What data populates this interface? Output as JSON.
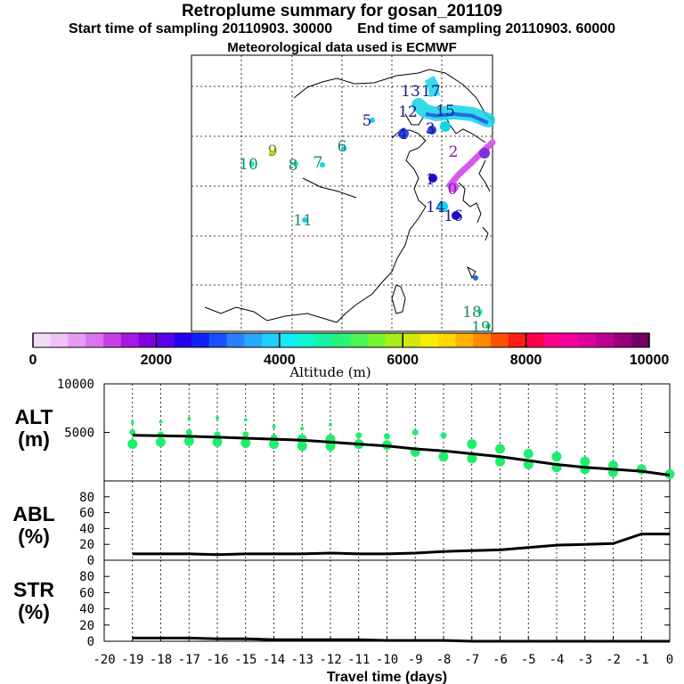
{
  "header": {
    "title": "Retroplume summary for gosan_201109",
    "start_label": "Start time of sampling 20110903. 30000",
    "end_label": "End time of sampling 20110903. 60000",
    "met_label": "Meteorological data used is ECMWF"
  },
  "colorbar": {
    "tick_labels": [
      "0",
      "2000",
      "4000",
      "6000",
      "8000",
      "10000"
    ],
    "xlabel": "Altitude (m)",
    "colors": [
      "#f3dcf7",
      "#efc3f6",
      "#e79cf2",
      "#dc73ee",
      "#c940e8",
      "#a418e0",
      "#8000e0",
      "#5c00ec",
      "#2400f0",
      "#1020f8",
      "#1850ff",
      "#2a80ff",
      "#28a8ff",
      "#1fcfff",
      "#12ecf4",
      "#10f5d0",
      "#18f4a4",
      "#28f47c",
      "#48f458",
      "#78f430",
      "#a8ec18",
      "#d4e808",
      "#f6f000",
      "#ffd800",
      "#ffb000",
      "#ff8a00",
      "#ff5200",
      "#ff1c10",
      "#ff0048",
      "#ff0088",
      "#f2009e",
      "#dc009e",
      "#bc0090",
      "#980078",
      "#700060"
    ]
  },
  "map": {
    "labels": [
      {
        "text": "5",
        "color": "#1a1a8a"
      },
      {
        "text": "6",
        "color": "#1a8a60"
      },
      {
        "text": "7",
        "color": "#1a8a60"
      },
      {
        "text": "8",
        "color": "#1a8a60"
      },
      {
        "text": "9",
        "color": "#6f8a00"
      },
      {
        "text": "10",
        "color": "#1a8a60"
      },
      {
        "text": "11",
        "color": "#1a8a60"
      },
      {
        "text": "4",
        "color": "#1a1a8a"
      },
      {
        "text": "3",
        "color": "#1a1a8a"
      },
      {
        "text": "2",
        "color": "#8a1aaa"
      },
      {
        "text": "1",
        "color": "#1a1a8a"
      },
      {
        "text": "0",
        "color": "#8a1aaa"
      },
      {
        "text": "16",
        "color": "#1a1a8a"
      },
      {
        "text": "14",
        "color": "#1a1a8a"
      },
      {
        "text": "15",
        "color": "#1a1a8a"
      },
      {
        "text": "12",
        "color": "#1a1a8a"
      },
      {
        "text": "13",
        "color": "#1a1a8a"
      },
      {
        "text": "17",
        "color": "#1a1a8a"
      },
      {
        "text": "18",
        "color": "#1a8a60"
      },
      {
        "text": "19",
        "color": "#1a8a60"
      }
    ]
  },
  "chart_data": [
    {
      "type": "scatter",
      "panel": "ALT",
      "ylabel": "ALT\n(m)",
      "ylabel_lines": [
        "ALT",
        "(m)"
      ],
      "ylim": [
        0,
        10000
      ],
      "yticks": [
        "10000",
        "5000"
      ],
      "xlim": [
        -20,
        0
      ],
      "series": [
        {
          "name": "median altitude",
          "x": [
            -19,
            -18,
            -17,
            -16,
            -15,
            -14,
            -13,
            -12,
            -11,
            -10,
            -9,
            -8,
            -7,
            -6,
            -5,
            -4,
            -3,
            -2,
            -1,
            0
          ],
          "values": [
            4700,
            4650,
            4600,
            4500,
            4400,
            4300,
            4200,
            4000,
            3800,
            3600,
            3300,
            3100,
            2800,
            2500,
            2100,
            1700,
            1400,
            1200,
            1000,
            600
          ]
        },
        {
          "name": "plume spread",
          "x": [
            -19,
            -19,
            -19,
            -18,
            -18,
            -18,
            -17,
            -17,
            -17,
            -16,
            -16,
            -16,
            -15,
            -15,
            -15,
            -14,
            -14,
            -14,
            -13,
            -13,
            -13,
            -12,
            -12,
            -12,
            -11,
            -11,
            -10,
            -10,
            -9,
            -9,
            -8,
            -8,
            -7,
            -7,
            -6,
            -6,
            -5,
            -5,
            -4,
            -4,
            -3,
            -3,
            -2,
            -2,
            -1,
            0
          ],
          "values": [
            6000,
            5000,
            3800,
            6100,
            4800,
            4000,
            6400,
            5000,
            4100,
            6500,
            4800,
            4000,
            6300,
            4800,
            3900,
            5600,
            4500,
            3800,
            5400,
            4300,
            3600,
            5800,
            4300,
            3600,
            4700,
            3800,
            4600,
            3700,
            5000,
            3000,
            4700,
            2500,
            3800,
            2300,
            3300,
            2000,
            2800,
            1700,
            2500,
            1400,
            2000,
            1200,
            1600,
            900,
            1200,
            700
          ]
        }
      ]
    },
    {
      "type": "line",
      "panel": "ABL",
      "ylabel": "ABL\n(%)",
      "ylabel_lines": [
        "ABL",
        "(%)"
      ],
      "ylim": [
        0,
        100
      ],
      "yticks": [
        "80",
        "60",
        "40",
        "20",
        "0"
      ],
      "x": [
        -19,
        -18,
        -17,
        -16,
        -15,
        -14,
        -13,
        -12,
        -11,
        -10,
        -9,
        -8,
        -7,
        -6,
        -5,
        -4,
        -3,
        -2,
        -1,
        0
      ],
      "series": [
        {
          "name": "ABL",
          "values": [
            8,
            8,
            8,
            7,
            8,
            8,
            8,
            9,
            8,
            8,
            9,
            11,
            12,
            13,
            16,
            19,
            20,
            21,
            33,
            33
          ]
        }
      ]
    },
    {
      "type": "line",
      "panel": "STR",
      "ylabel": "STR\n(%)",
      "ylabel_lines": [
        "STR",
        "(%)"
      ],
      "ylim": [
        0,
        100
      ],
      "yticks": [
        "80",
        "60",
        "40",
        "20",
        "0"
      ],
      "x": [
        -19,
        -18,
        -17,
        -16,
        -15,
        -14,
        -13,
        -12,
        -11,
        -10,
        -9,
        -8,
        -7,
        -6,
        -5,
        -4,
        -3,
        -2,
        -1,
        0
      ],
      "series": [
        {
          "name": "STR",
          "values": [
            4,
            4,
            4,
            3,
            3,
            2,
            2,
            2,
            2,
            1,
            1,
            1,
            0,
            0,
            0,
            0,
            0,
            0,
            0,
            0
          ]
        }
      ]
    }
  ],
  "xaxis": {
    "tick_labels": [
      "-20",
      "-19",
      "-18",
      "-17",
      "-16",
      "-15",
      "-14",
      "-13",
      "-12",
      "-11",
      "-10",
      "-9",
      "-8",
      "-7",
      "-6",
      "-5",
      "-4",
      "-3",
      "-2",
      "-1",
      "0"
    ],
    "label": "Travel time (days)"
  }
}
